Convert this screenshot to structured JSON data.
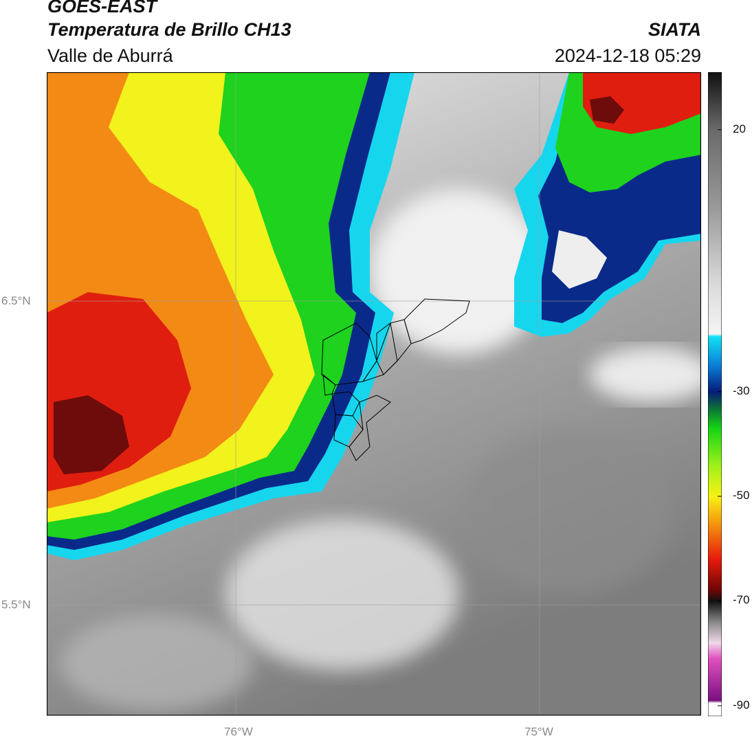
{
  "header": {
    "satellite": "GOES-EAST",
    "product": "Temperatura de Brillo CH13",
    "region": "Valle de Aburrá",
    "org": "SIATA",
    "timestamp": "2024-12-18 05:29"
  },
  "map": {
    "lat_labels": [
      "6.5°N",
      "5.5°N"
    ],
    "lon_labels": [
      "76°W",
      "75°W"
    ],
    "colors": {
      "cold_core": "#6e0b0b",
      "red": "#e01e0f",
      "orange": "#f38a14",
      "yellow": "#f2f21c",
      "green": "#1ed21e",
      "dark_blue": "#0a2a8a",
      "cyan": "#16d6ee",
      "clear_sky_light": "#eeeeee",
      "clear_sky_dark": "#7d7d7d"
    }
  },
  "colorbar": {
    "ticks": [
      {
        "label": "20",
        "value": 20
      },
      {
        "label": "-30",
        "value": -30
      },
      {
        "label": "-50",
        "value": -50
      },
      {
        "label": "-70",
        "value": -70
      },
      {
        "label": "-90",
        "value": -90
      }
    ],
    "range": [
      -92,
      31
    ],
    "stops": [
      {
        "v": 31,
        "c": "#111111"
      },
      {
        "v": 20,
        "c": "#6a6a6a"
      },
      {
        "v": 5,
        "c": "#9a9a9a"
      },
      {
        "v": -10,
        "c": "#dcdcdc"
      },
      {
        "v": -19,
        "c": "#f4f4f4"
      },
      {
        "v": -19.5,
        "c": "#13e1f3"
      },
      {
        "v": -25,
        "c": "#0a7ed8"
      },
      {
        "v": -30,
        "c": "#061c7a"
      },
      {
        "v": -33,
        "c": "#0c6b3a"
      },
      {
        "v": -37,
        "c": "#14d414"
      },
      {
        "v": -44,
        "c": "#9cf01a"
      },
      {
        "v": -50,
        "c": "#f6f214"
      },
      {
        "v": -55,
        "c": "#f59a0e"
      },
      {
        "v": -62,
        "c": "#e81a0c"
      },
      {
        "v": -68,
        "c": "#6a0606"
      },
      {
        "v": -70,
        "c": "#111111"
      },
      {
        "v": -74,
        "c": "#888888"
      },
      {
        "v": -78,
        "c": "#f0d8e8"
      },
      {
        "v": -81,
        "c": "#e050c0"
      },
      {
        "v": -89,
        "c": "#7a1080"
      },
      {
        "v": -89.5,
        "c": "#ffffff"
      },
      {
        "v": -92,
        "c": "#ffffff"
      }
    ]
  }
}
